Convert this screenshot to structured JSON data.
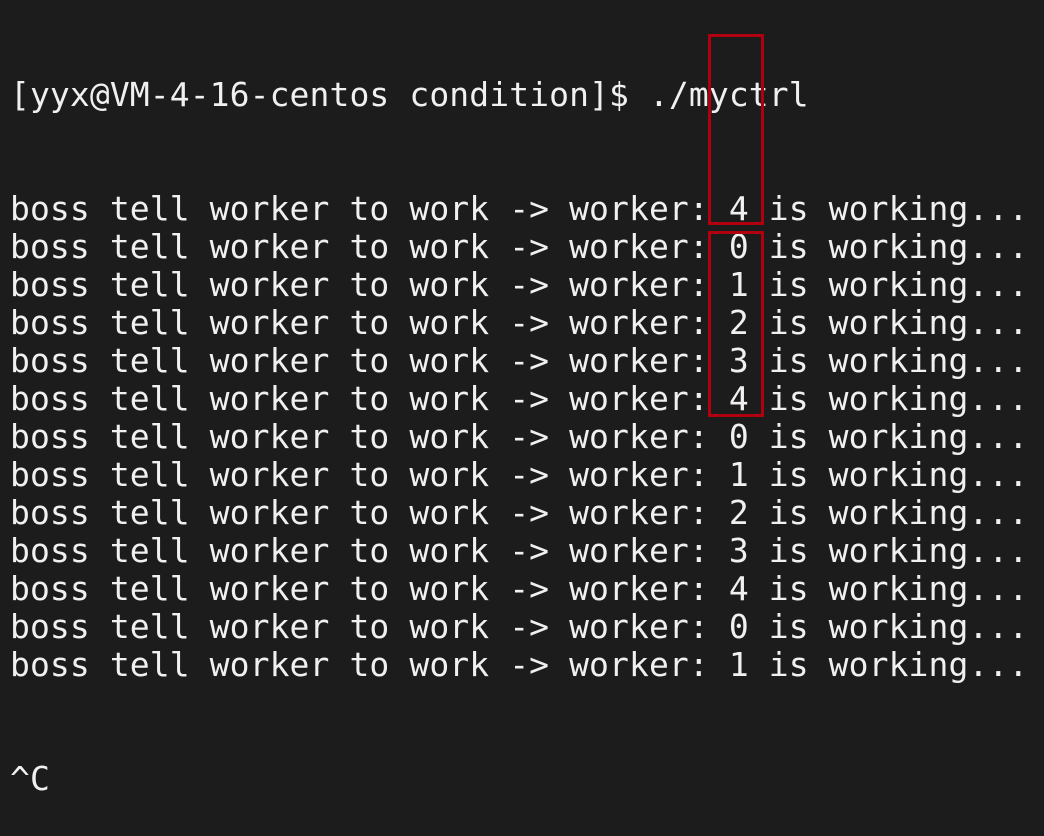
{
  "terminal": {
    "prompt": "[yyx@VM-4-16-centos condition]$ ./myctrl",
    "output_lines": [
      "boss tell worker to work -> worker: 4 is working...",
      "boss tell worker to work -> worker: 0 is working...",
      "boss tell worker to work -> worker: 1 is working...",
      "boss tell worker to work -> worker: 2 is working...",
      "boss tell worker to work -> worker: 3 is working...",
      "boss tell worker to work -> worker: 4 is working...",
      "boss tell worker to work -> worker: 0 is working...",
      "boss tell worker to work -> worker: 1 is working...",
      "boss tell worker to work -> worker: 2 is working...",
      "boss tell worker to work -> worker: 3 is working...",
      "boss tell worker to work -> worker: 4 is working...",
      "boss tell worker to work -> worker: 0 is working...",
      "boss tell worker to work -> worker: 1 is working..."
    ],
    "interrupt": "^C"
  },
  "annotations": {
    "highlight_color": "#b00010"
  }
}
